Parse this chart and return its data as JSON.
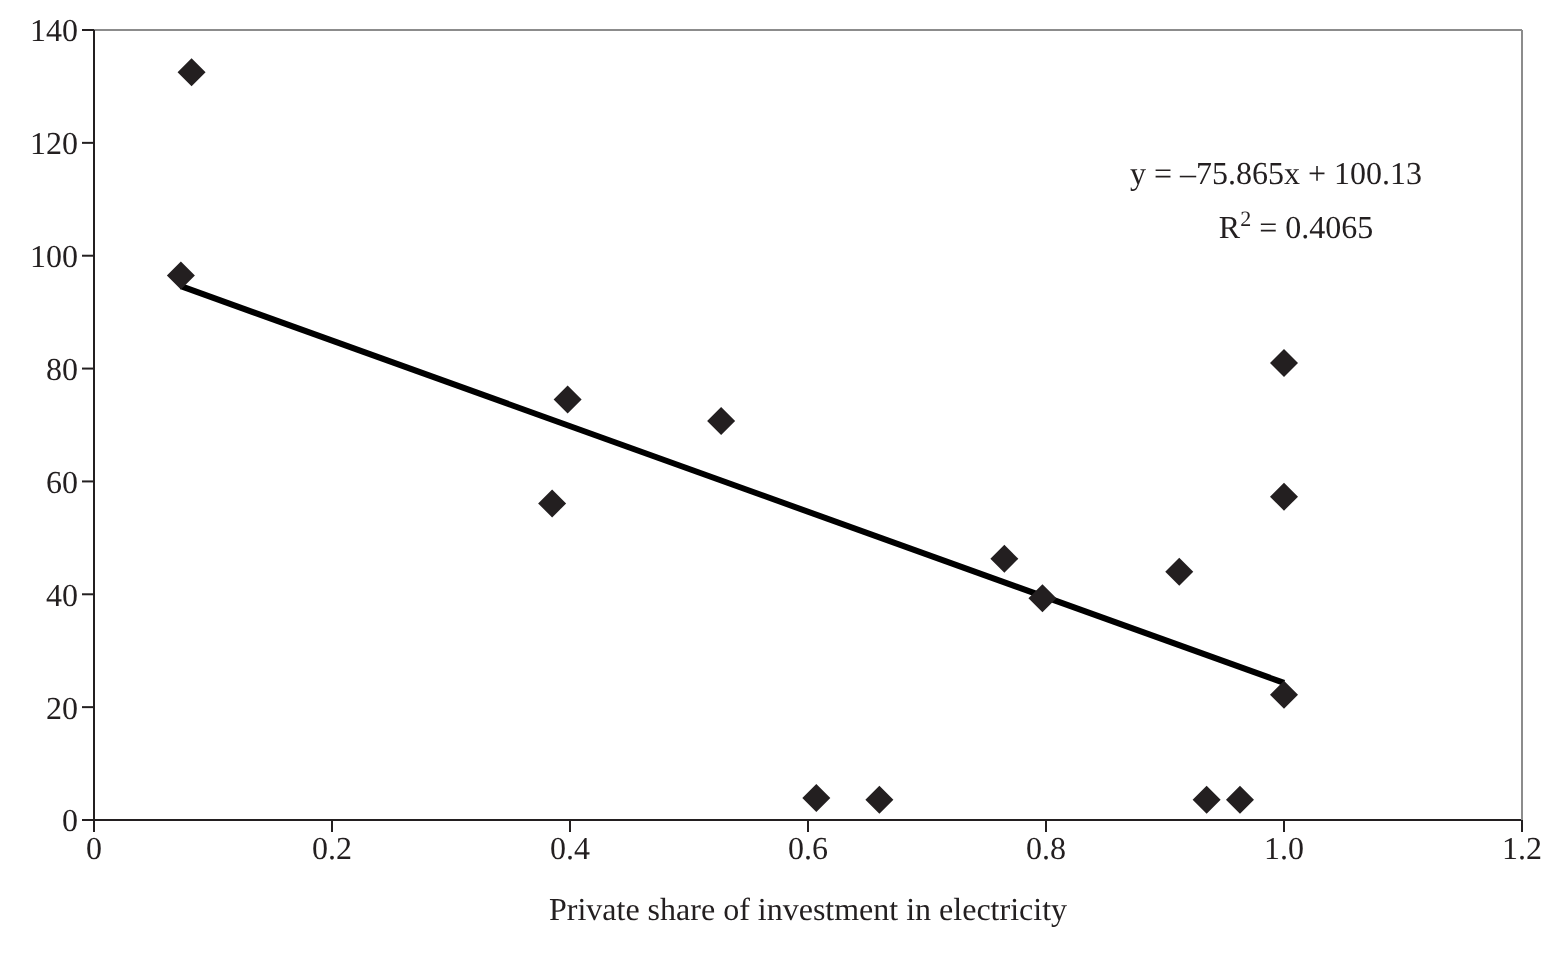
{
  "chart_data": {
    "type": "scatter",
    "xlabel": "Private share of investment in electricity",
    "annotations": [
      "y = –75.865x + 100.13",
      "R$^{2}$ = 0.4065"
    ],
    "series": [
      {
        "marker": "diamond",
        "color": "#231f20",
        "x": [
          0.082,
          0.073,
          0.398,
          0.527,
          0.385,
          1.0,
          0.765,
          0.912,
          0.797,
          1.0,
          0.607,
          0.66,
          0.935,
          0.963,
          1.0
        ],
        "values": [
          132.5,
          96.5,
          74.5,
          70.7,
          56.1,
          57.3,
          46.3,
          44.0,
          39.3,
          22.2,
          3.9,
          3.6,
          3.6,
          3.6,
          81.0
        ]
      },
      {
        "type": "line",
        "marker": "none",
        "color": "#000000",
        "x": [
          0.073,
          1.0
        ],
        "values": [
          94.6,
          24.3
        ]
      }
    ],
    "xlim": [
      0,
      1.2
    ],
    "xticks": [
      0,
      0.2,
      0.4,
      0.6,
      0.8,
      {
        "value": 1,
        "label": "1.0"
      },
      1.2
    ],
    "ylim": [
      0,
      140
    ],
    "yticks": [
      0,
      20,
      40,
      60,
      80,
      100,
      120,
      140
    ]
  }
}
